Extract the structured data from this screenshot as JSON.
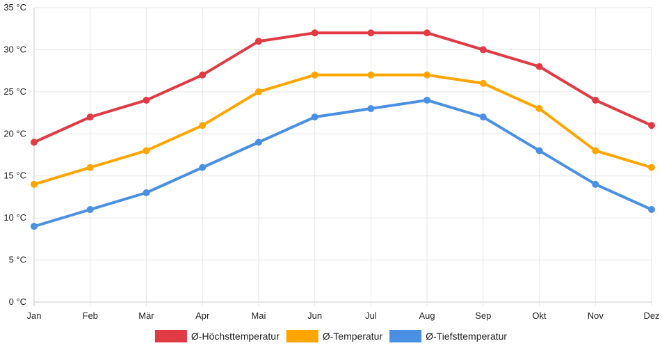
{
  "chart_data": {
    "type": "line",
    "categories": [
      "Jan",
      "Feb",
      "Mär",
      "Apr",
      "Mai",
      "Jun",
      "Jul",
      "Aug",
      "Sep",
      "Okt",
      "Nov",
      "Dez"
    ],
    "y_unit": "°C",
    "ylim": [
      0,
      35
    ],
    "y_step": 5,
    "grid": true,
    "legend_position": "bottom",
    "series": [
      {
        "name": "Ø-Höchsttemperatur",
        "color": "#e03a45",
        "values": [
          19,
          22,
          24,
          27,
          31,
          32,
          32,
          32,
          30,
          28,
          24,
          21
        ]
      },
      {
        "name": "Ø-Temperatur",
        "color": "#ffa500",
        "values": [
          14,
          16,
          18,
          21,
          25,
          27,
          27,
          27,
          26,
          23,
          18,
          16
        ]
      },
      {
        "name": "Ø-Tiefsttemperatur",
        "color": "#4a90e2",
        "values": [
          9,
          11,
          13,
          16,
          19,
          22,
          23,
          24,
          22,
          18,
          14,
          11
        ]
      }
    ]
  }
}
